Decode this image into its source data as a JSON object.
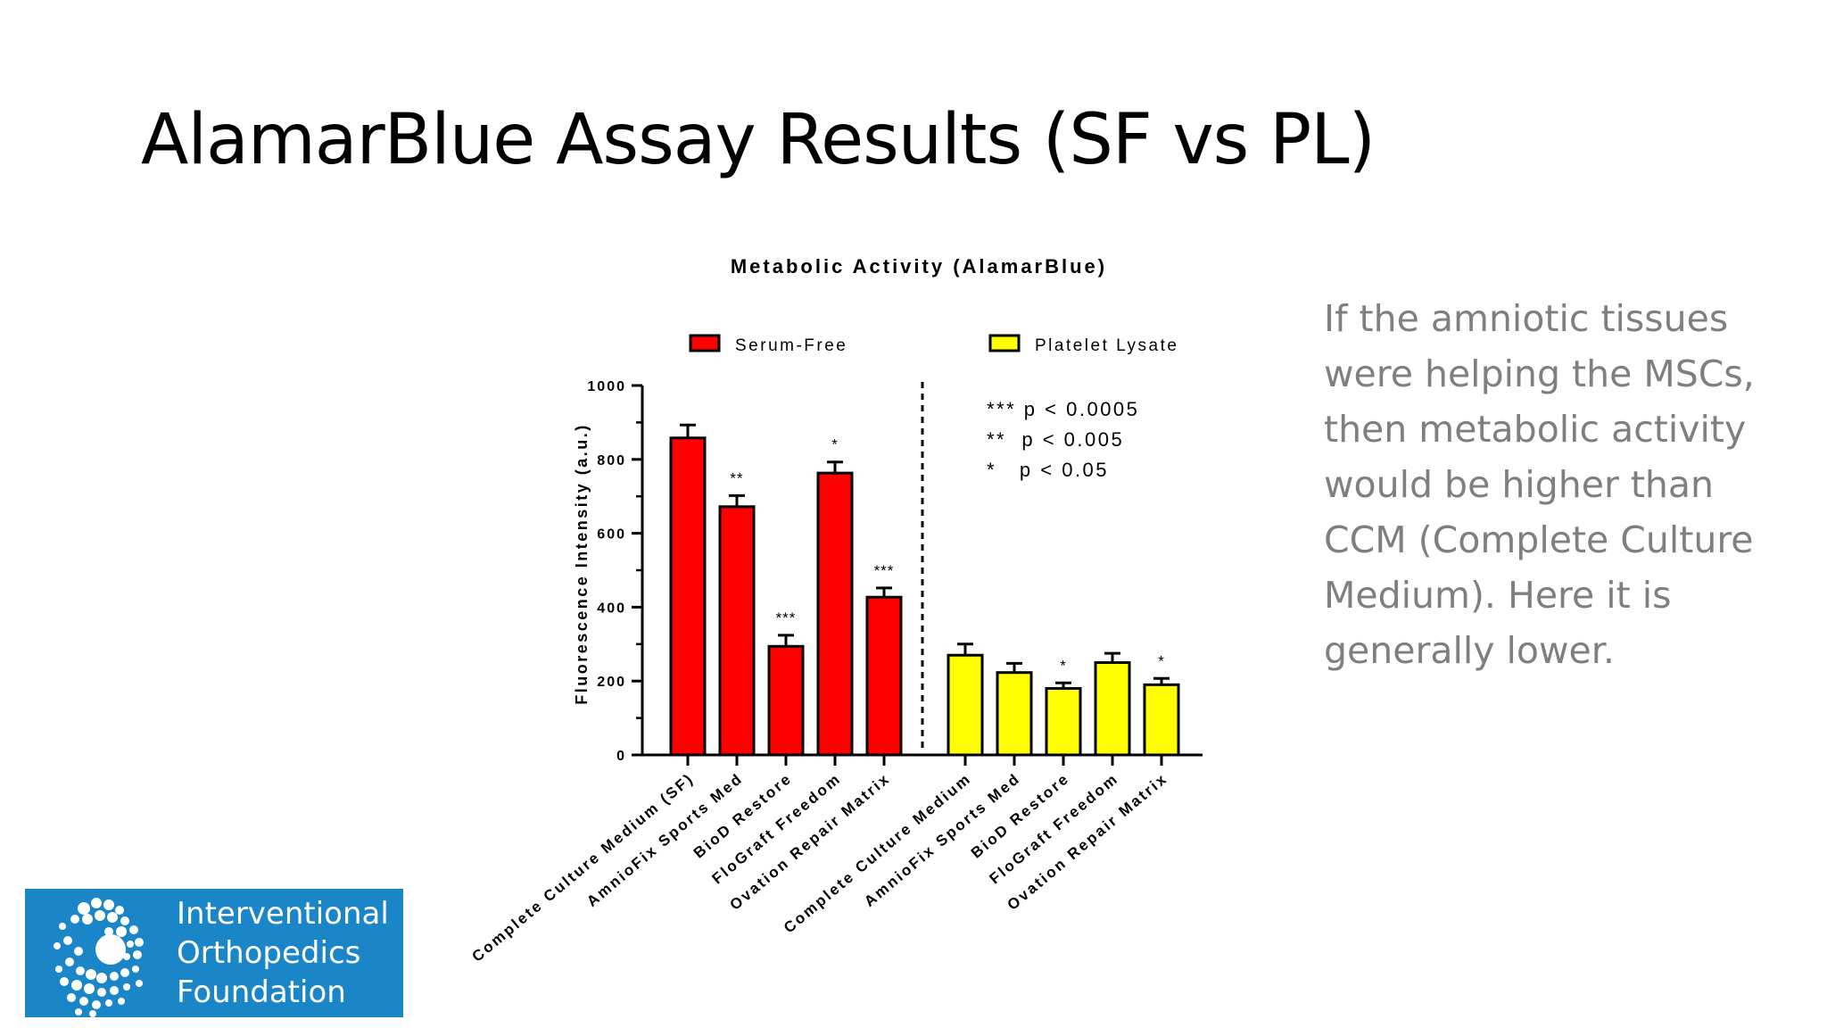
{
  "slide": {
    "title": "AlamarBlue Assay Results (SF vs PL)",
    "note": "If the amniotic tissues were helping the MSCs, then metabolic activity would be higher than CCM (Complete Culture Medium). Here it is generally lower."
  },
  "logo": {
    "lines": [
      "Interventional",
      "Orthopedics",
      "Foundation"
    ],
    "color": "#1a86c8"
  },
  "chart_data": {
    "type": "bar",
    "title": "Metabolic Activity (AlamarBlue)",
    "ylabel": "Fluorescence Intensity (a.u.)",
    "xlabel": "",
    "ylim": [
      0,
      1000
    ],
    "yticks": [
      0,
      200,
      400,
      600,
      800,
      1000
    ],
    "grid": false,
    "legend_position": "top",
    "separator": "dashed",
    "significance_legend": [
      "*** p < 0.0005",
      "**  p < 0.005",
      "*   p < 0.05"
    ],
    "series": [
      {
        "name": "Serum-Free",
        "color": "#ff0000",
        "categories": [
          "Complete Culture Medium (SF)",
          "AmnioFix Sports Med",
          "BioD Restore",
          "FloGraft Freedom",
          "Ovation Repair Matrix"
        ],
        "values": [
          858,
          672,
          294,
          763,
          427
        ],
        "errors": [
          35,
          30,
          30,
          30,
          25
        ],
        "significance": [
          "",
          "**",
          "***",
          "*",
          "***"
        ]
      },
      {
        "name": "Platelet Lysate",
        "color": "#ffff00",
        "categories": [
          "Complete Culture Medium",
          "AmnioFix Sports Med",
          "BioD Restore",
          "FloGraft Freedom",
          "Ovation Repair Matrix"
        ],
        "values": [
          270,
          223,
          180,
          250,
          190
        ],
        "errors": [
          30,
          25,
          15,
          25,
          17
        ],
        "significance": [
          "",
          "",
          "*",
          "",
          "*"
        ]
      }
    ]
  }
}
